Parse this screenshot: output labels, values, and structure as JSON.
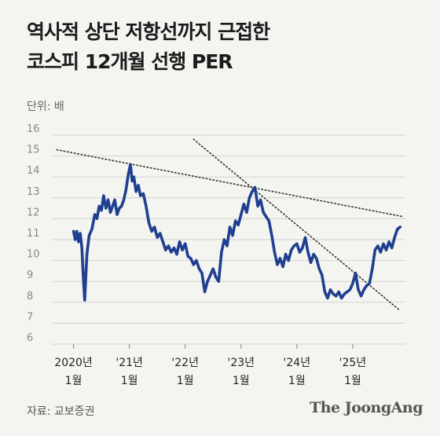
{
  "header": {
    "title_line1": "역사적 상단 저항선까지 근접한",
    "title_line2": "코스피 12개월 선행 PER",
    "unit": "단위: 배"
  },
  "footer": {
    "source": "자료: 교보증권",
    "brand": "The JoongAng"
  },
  "colors": {
    "series": "#1f3f8f",
    "grid": "#d2d2d2",
    "trend": "#333333",
    "background": "#f4f4f1"
  },
  "chart_data": {
    "type": "line",
    "title": "코스피 12개월 선행 PER",
    "ylabel": "단위: 배",
    "ylim": [
      6,
      16
    ],
    "yticks": [
      6,
      7,
      8,
      9,
      10,
      11,
      12,
      13,
      14,
      15,
      16
    ],
    "xlim": [
      2019.95,
      2025.93
    ],
    "grid": "horizontal",
    "x_ticks": [
      {
        "x": 2020.0,
        "line1": "2020년",
        "line2": "1월"
      },
      {
        "x": 2021.0,
        "line1": "'21년",
        "line2": "1월"
      },
      {
        "x": 2022.0,
        "line1": "'22년",
        "line2": "1월"
      },
      {
        "x": 2023.0,
        "line1": "'23년",
        "line2": "1월"
      },
      {
        "x": 2024.0,
        "line1": "'24년",
        "line2": "1월"
      },
      {
        "x": 2025.0,
        "line1": "'25년",
        "line2": "1월"
      }
    ],
    "series": [
      {
        "x": [
          2020.0,
          2020.03,
          2020.06,
          2020.09,
          2020.12,
          2020.15,
          2020.18,
          2020.2,
          2020.24,
          2020.28,
          2020.33,
          2020.38,
          2020.42,
          2020.46,
          2020.5,
          2020.54,
          2020.58,
          2020.62,
          2020.66,
          2020.7,
          2020.74,
          2020.78,
          2020.82,
          2020.86,
          2020.9,
          2020.94,
          2020.98,
          2021.02,
          2021.05,
          2021.08,
          2021.12,
          2021.16,
          2021.2,
          2021.25,
          2021.3,
          2021.35,
          2021.4,
          2021.45,
          2021.5,
          2021.55,
          2021.6,
          2021.65,
          2021.7,
          2021.75,
          2021.8,
          2021.85,
          2021.9,
          2021.95,
          2022.0,
          2022.05,
          2022.1,
          2022.15,
          2022.2,
          2022.25,
          2022.3,
          2022.35,
          2022.4,
          2022.45,
          2022.5,
          2022.55,
          2022.6,
          2022.65,
          2022.7,
          2022.75,
          2022.8,
          2022.85,
          2022.9,
          2022.95,
          2023.0,
          2023.05,
          2023.1,
          2023.15,
          2023.2,
          2023.25,
          2023.3,
          2023.35,
          2023.4,
          2023.45,
          2023.5,
          2023.55,
          2023.6,
          2023.65,
          2023.7,
          2023.75,
          2023.8,
          2023.85,
          2023.9,
          2023.95,
          2024.0,
          2024.05,
          2024.1,
          2024.15,
          2024.2,
          2024.25,
          2024.3,
          2024.35,
          2024.4,
          2024.45,
          2024.5,
          2024.55,
          2024.6,
          2024.65,
          2024.7,
          2024.75,
          2024.8,
          2024.85,
          2024.9,
          2024.95,
          2025.0,
          2025.05,
          2025.1,
          2025.15,
          2025.2,
          2025.25,
          2025.3,
          2025.35,
          2025.4,
          2025.45,
          2025.5,
          2025.55,
          2025.6,
          2025.65,
          2025.7,
          2025.75,
          2025.8,
          2025.85
        ],
        "y": [
          11.4,
          11.0,
          11.4,
          10.9,
          11.3,
          10.6,
          9.0,
          8.1,
          10.3,
          11.2,
          11.5,
          12.2,
          12.0,
          12.6,
          12.4,
          13.1,
          12.5,
          12.9,
          12.3,
          12.6,
          12.9,
          12.2,
          12.5,
          12.6,
          12.9,
          13.4,
          14.1,
          14.6,
          13.8,
          14.0,
          13.3,
          13.6,
          13.1,
          13.2,
          12.6,
          11.8,
          11.4,
          11.6,
          11.1,
          11.3,
          10.9,
          10.5,
          10.7,
          10.4,
          10.6,
          10.3,
          10.9,
          10.5,
          10.8,
          10.2,
          10.1,
          9.8,
          10.0,
          9.6,
          9.4,
          8.5,
          9.0,
          9.3,
          9.6,
          9.2,
          9.0,
          10.4,
          11.0,
          10.7,
          11.6,
          11.2,
          11.9,
          11.7,
          12.2,
          12.7,
          12.3,
          13.0,
          13.3,
          13.5,
          12.6,
          12.9,
          12.3,
          12.1,
          11.9,
          11.2,
          10.4,
          9.8,
          10.1,
          9.7,
          10.3,
          10.0,
          10.5,
          10.7,
          10.8,
          10.4,
          10.6,
          11.1,
          10.4,
          9.9,
          10.3,
          10.1,
          9.6,
          9.3,
          8.5,
          8.2,
          8.6,
          8.4,
          8.3,
          8.5,
          8.2,
          8.4,
          8.5,
          8.6,
          8.9,
          9.4,
          8.6,
          8.3,
          8.6,
          8.8,
          8.9,
          9.6,
          10.5,
          10.7,
          10.4,
          10.8,
          10.5,
          10.9,
          10.6,
          11.1,
          11.5,
          11.6
        ]
      }
    ],
    "trendlines": [
      {
        "x": [
          2019.7,
          2025.9
        ],
        "y": [
          15.3,
          12.1
        ]
      },
      {
        "x": [
          2022.15,
          2025.85
        ],
        "y": [
          15.8,
          7.6
        ]
      }
    ]
  }
}
